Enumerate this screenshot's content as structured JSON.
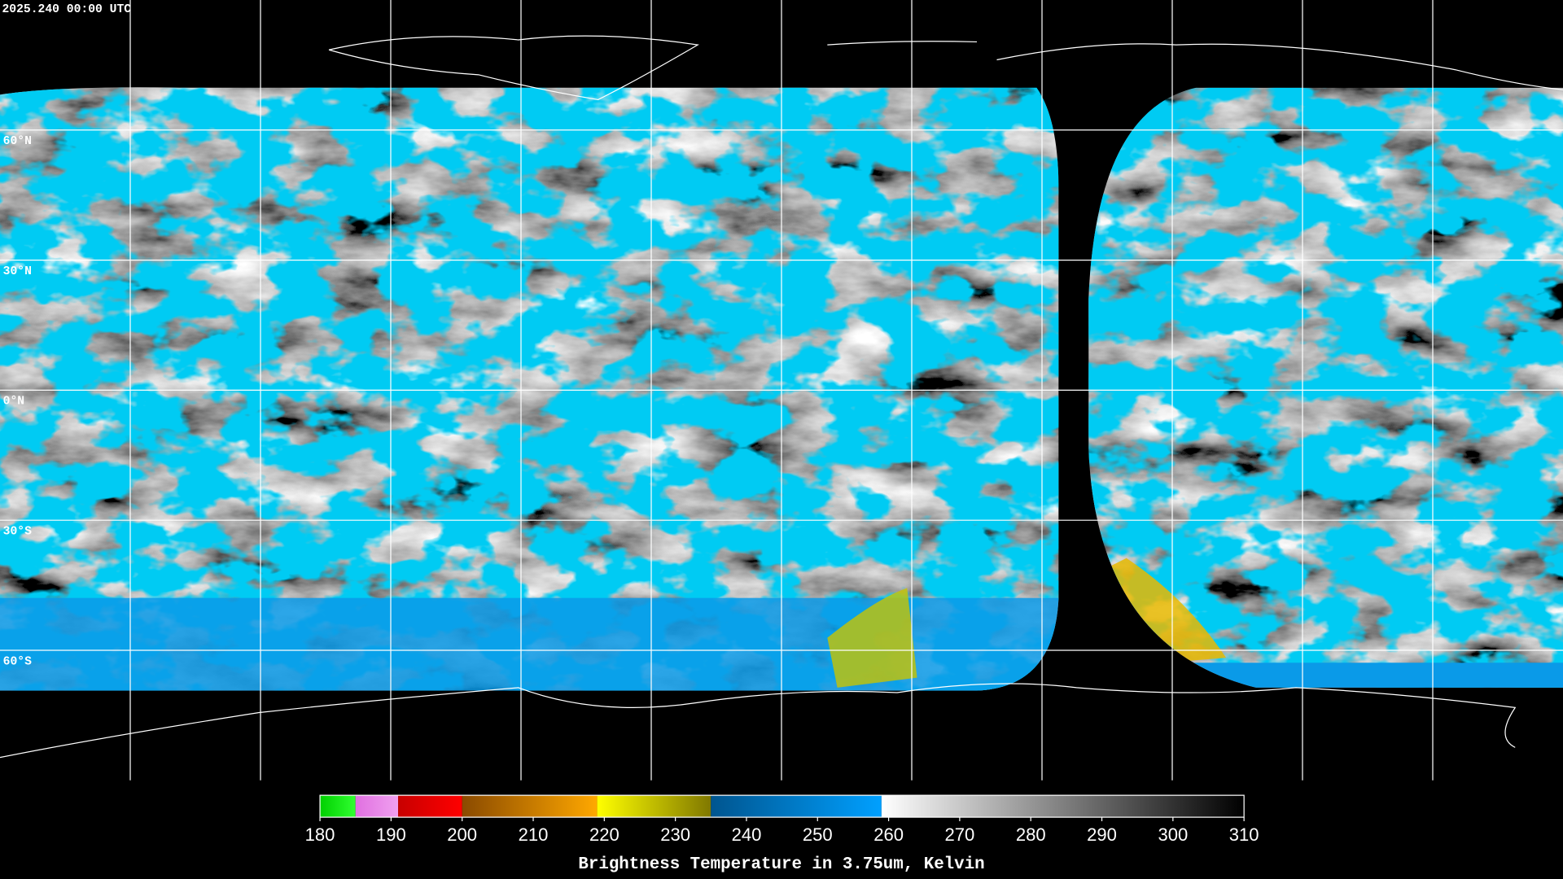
{
  "header": {
    "timestamp": "2025.240 00:00 UTC"
  },
  "map": {
    "lat_labels": [
      "60°N",
      "30°N",
      "0°N",
      "30°S",
      "60°S"
    ]
  },
  "colorbar": {
    "title": "Brightness Temperature in 3.75um, Kelvin",
    "lim": [
      180,
      310
    ],
    "ticks": [
      180,
      190,
      200,
      210,
      220,
      230,
      240,
      250,
      260,
      270,
      280,
      290,
      300,
      310
    ],
    "segments": [
      {
        "from": 180,
        "to": 185,
        "colors": [
          "#00d000",
          "#30ff30"
        ]
      },
      {
        "from": 185,
        "to": 191,
        "colors": [
          "#e070e0",
          "#f0a0f0"
        ]
      },
      {
        "from": 191,
        "to": 200,
        "colors": [
          "#c80000",
          "#ff0000"
        ]
      },
      {
        "from": 200,
        "to": 219,
        "colors": [
          "#8a4a00",
          "#ffa800"
        ]
      },
      {
        "from": 219,
        "to": 235,
        "colors": [
          "#ffff00",
          "#807800"
        ]
      },
      {
        "from": 235,
        "to": 259,
        "colors": [
          "#00558f",
          "#00a0ff"
        ]
      },
      {
        "from": 259,
        "to": 310,
        "colors": [
          "#ffffff",
          "#000000"
        ]
      }
    ]
  }
}
